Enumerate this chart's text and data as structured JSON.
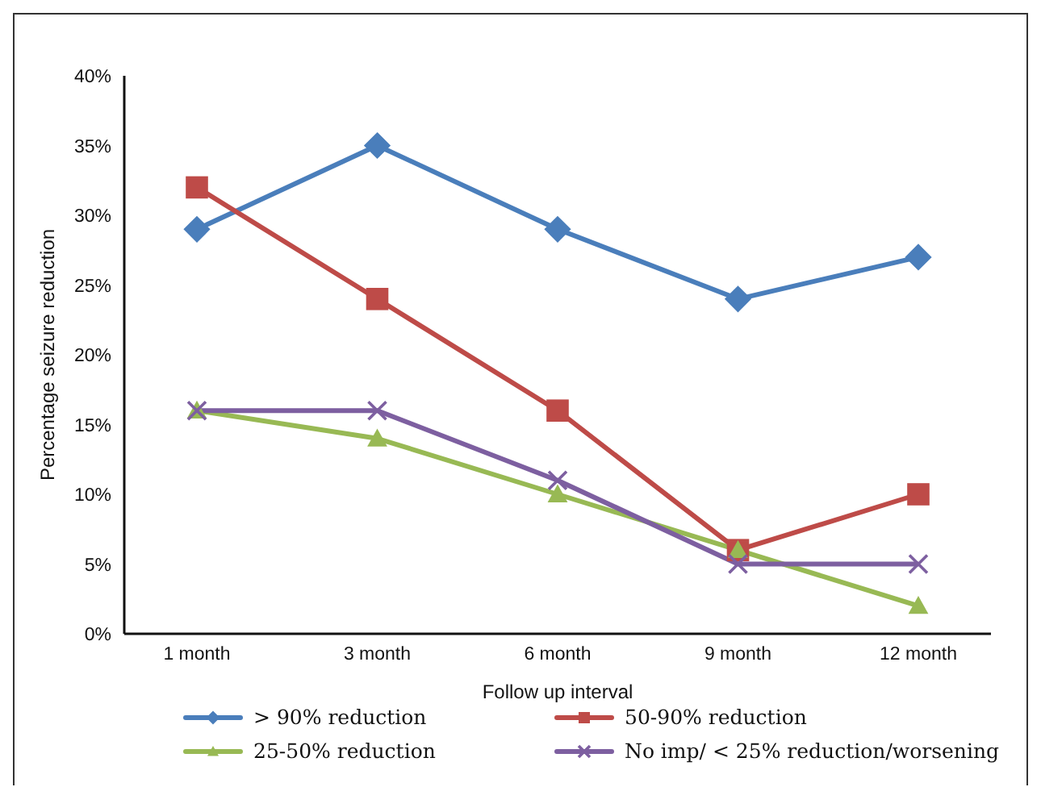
{
  "chart_data": {
    "type": "line",
    "xlabel": "Follow up interval",
    "ylabel": "Percentage seizure reduction",
    "categories": [
      "1 month",
      "3 month",
      "6 month",
      "9 month",
      "12 month"
    ],
    "series": [
      {
        "name": "> 90% reduction",
        "color": "#4a7ebb",
        "marker": "diamond",
        "values": [
          29,
          35,
          29,
          24,
          27
        ]
      },
      {
        "name": "50-90% reduction",
        "color": "#be4b48",
        "marker": "square",
        "values": [
          32,
          24,
          16,
          6,
          10
        ]
      },
      {
        "name": "25-50% reduction",
        "color": "#98b954",
        "marker": "triangle",
        "values": [
          16,
          14,
          10,
          6,
          2
        ]
      },
      {
        "name": "No imp/ < 25% reduction/worsening",
        "color": "#7d5fa0",
        "marker": "cross",
        "values": [
          16,
          16,
          11,
          5,
          5
        ]
      }
    ],
    "ylim": [
      0,
      40
    ],
    "yticks": [
      {
        "value": 0,
        "label": "0%"
      },
      {
        "value": 5,
        "label": "5%"
      },
      {
        "value": 10,
        "label": "10%"
      },
      {
        "value": 15,
        "label": "15%"
      },
      {
        "value": 20,
        "label": "20%"
      },
      {
        "value": 25,
        "label": "25%"
      },
      {
        "value": 30,
        "label": "30%"
      },
      {
        "value": 35,
        "label": "35%"
      },
      {
        "value": 40,
        "label": "40%"
      }
    ],
    "grid": false,
    "legend": "bottom",
    "line_style": "solid"
  }
}
